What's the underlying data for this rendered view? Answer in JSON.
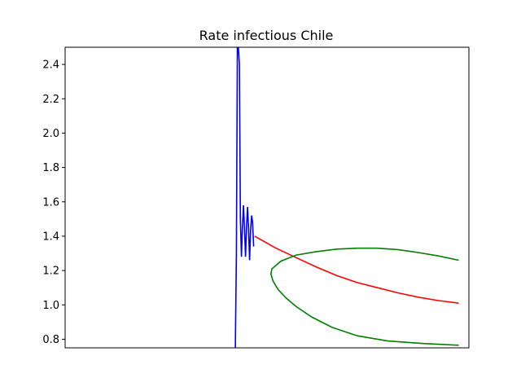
{
  "chart_data": {
    "type": "line",
    "title": "Rate infectious Chile",
    "xlabel": "",
    "ylabel": "",
    "x_ticks_visible": false,
    "ylim": [
      0.75,
      2.5
    ],
    "yticks": [
      "0.8",
      "1.0",
      "1.2",
      "1.4",
      "1.6",
      "1.8",
      "2.0",
      "2.2",
      "2.4"
    ],
    "grid": false,
    "legend": "none",
    "series": [
      {
        "color": "#0000ff",
        "points": [
          [
            0,
            0.75
          ],
          [
            1,
            1.3
          ],
          [
            2,
            2.5
          ],
          [
            3,
            2.5
          ],
          [
            4,
            2.4
          ],
          [
            5,
            1.5
          ],
          [
            6,
            1.28
          ],
          [
            7,
            1.45
          ],
          [
            8,
            1.58
          ],
          [
            9,
            1.45
          ],
          [
            10,
            1.28
          ],
          [
            11,
            1.45
          ],
          [
            12,
            1.57
          ],
          [
            13,
            1.45
          ],
          [
            14,
            1.26
          ],
          [
            15,
            1.43
          ],
          [
            16,
            1.52
          ],
          [
            17,
            1.48
          ],
          [
            18,
            1.34
          ]
        ]
      },
      {
        "color": "#ff0000",
        "points": [
          [
            19,
            1.4
          ],
          [
            40,
            1.33
          ],
          [
            60,
            1.275
          ],
          [
            80,
            1.22
          ],
          [
            100,
            1.17
          ],
          [
            120,
            1.13
          ],
          [
            140,
            1.1
          ],
          [
            160,
            1.07
          ],
          [
            180,
            1.045
          ],
          [
            200,
            1.025
          ],
          [
            220,
            1.01
          ]
        ]
      },
      {
        "color": "#008000",
        "points": [
          [
            220,
            1.26
          ],
          [
            200,
            1.285
          ],
          [
            180,
            1.305
          ],
          [
            160,
            1.322
          ],
          [
            140,
            1.33
          ],
          [
            120,
            1.33
          ],
          [
            100,
            1.325
          ],
          [
            80,
            1.31
          ],
          [
            60,
            1.29
          ],
          [
            45,
            1.255
          ],
          [
            36,
            1.21
          ],
          [
            35,
            1.18
          ],
          [
            37,
            1.14
          ],
          [
            42,
            1.09
          ],
          [
            50,
            1.04
          ],
          [
            60,
            0.99
          ],
          [
            75,
            0.93
          ],
          [
            95,
            0.87
          ],
          [
            120,
            0.82
          ],
          [
            150,
            0.79
          ],
          [
            185,
            0.775
          ],
          [
            220,
            0.765
          ]
        ]
      }
    ]
  }
}
